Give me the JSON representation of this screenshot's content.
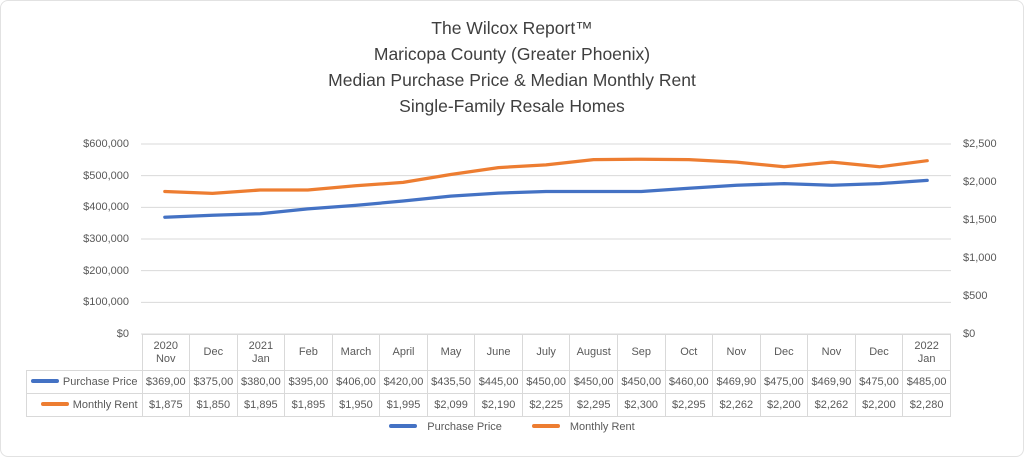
{
  "chart_data": {
    "type": "line",
    "title_lines": [
      "The Wilcox Report™",
      "Maricopa County (Greater Phoenix)",
      "Median Purchase Price & Median Monthly Rent",
      "Single-Family Resale Homes"
    ],
    "grid": true,
    "grid_color": "#d9d9d9",
    "legend_position": "bottom",
    "categories": [
      {
        "top": "2020",
        "bottom": "Nov"
      },
      {
        "top": "",
        "bottom": "Dec"
      },
      {
        "top": "2021",
        "bottom": "Jan"
      },
      {
        "top": "",
        "bottom": "Feb"
      },
      {
        "top": "",
        "bottom": "March"
      },
      {
        "top": "",
        "bottom": "April"
      },
      {
        "top": "",
        "bottom": "May"
      },
      {
        "top": "",
        "bottom": "June"
      },
      {
        "top": "",
        "bottom": "July"
      },
      {
        "top": "",
        "bottom": "August"
      },
      {
        "top": "",
        "bottom": "Sep"
      },
      {
        "top": "",
        "bottom": "Oct"
      },
      {
        "top": "",
        "bottom": "Nov"
      },
      {
        "top": "",
        "bottom": "Dec"
      },
      {
        "top": "",
        "bottom": "Nov"
      },
      {
        "top": "",
        "bottom": "Dec"
      },
      {
        "top": "2022",
        "bottom": "Jan"
      }
    ],
    "left_axis": {
      "max": 600000,
      "ticks": [
        "$0",
        "$100,000",
        "$200,000",
        "$300,000",
        "$400,000",
        "$500,000",
        "$600,000"
      ]
    },
    "right_axis": {
      "max": 2500,
      "ticks": [
        "$0",
        "$500",
        "$1,000",
        "$1,500",
        "$2,000",
        "$2,500"
      ]
    },
    "series": [
      {
        "name": "Purchase Price",
        "axis": "left",
        "color": "#4472C4",
        "values": [
          369000,
          375000,
          380000,
          395000,
          406000,
          420000,
          435500,
          445000,
          450000,
          450000,
          450000,
          460000,
          469900,
          475000,
          469900,
          475000,
          485000
        ],
        "table_display": [
          "$369,00",
          "$375,00",
          "$380,00",
          "$395,00",
          "$406,00",
          "$420,00",
          "$435,50",
          "$445,00",
          "$450,00",
          "$450,00",
          "$450,00",
          "$460,00",
          "$469,90",
          "$475,00",
          "$469,90",
          "$475,00",
          "$485,00"
        ]
      },
      {
        "name": "Monthly Rent",
        "axis": "right",
        "color": "#ED7D31",
        "values": [
          1875,
          1850,
          1895,
          1895,
          1950,
          1995,
          2099,
          2190,
          2225,
          2295,
          2300,
          2295,
          2262,
          2200,
          2262,
          2200,
          2280
        ],
        "table_display": [
          "$1,875",
          "$1,850",
          "$1,895",
          "$1,895",
          "$1,950",
          "$1,995",
          "$2,099",
          "$2,190",
          "$2,225",
          "$2,295",
          "$2,300",
          "$2,295",
          "$2,262",
          "$2,200",
          "$2,262",
          "$2,200",
          "$2,280"
        ]
      }
    ]
  }
}
